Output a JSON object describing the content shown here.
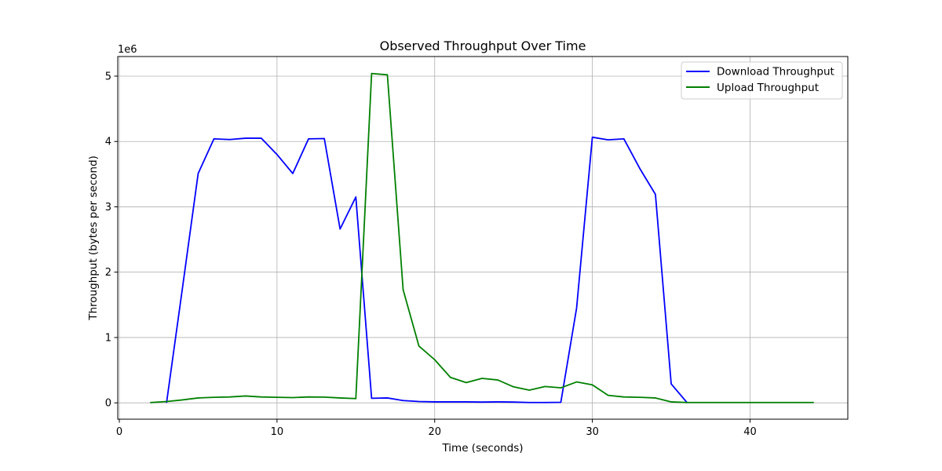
{
  "chart_data": {
    "type": "line",
    "title": "Observed Throughput Over Time",
    "xlabel": "Time (seconds)",
    "ylabel": "Throughput (bytes per second)",
    "y_offset_text": "1e6",
    "y_scale_factor": 1000000,
    "xlim": [
      -0.1,
      46.2
    ],
    "ylim": [
      -250000,
      5300000
    ],
    "xticks": [
      0,
      10,
      20,
      30,
      40
    ],
    "yticks": [
      0,
      1000000,
      2000000,
      3000000,
      4000000,
      5000000
    ],
    "xtick_labels": [
      "0",
      "10",
      "20",
      "30",
      "40"
    ],
    "ytick_labels": [
      "0",
      "1",
      "2",
      "3",
      "4",
      "5"
    ],
    "grid": true,
    "legend_position": "top-right",
    "series": [
      {
        "name": "Download Throughput",
        "color": "#0000ff",
        "x": [
          3,
          4,
          5,
          6,
          7,
          8,
          9,
          10,
          11,
          12,
          13,
          14,
          15,
          16,
          17,
          18,
          19,
          20,
          21,
          22,
          23,
          24,
          25,
          26,
          27,
          28,
          29,
          30,
          31,
          32,
          33,
          34,
          35,
          36
        ],
        "y": [
          10000,
          1750000,
          3510000,
          4040000,
          4030000,
          4050000,
          4050000,
          3800000,
          3510000,
          4040000,
          4045000,
          2660000,
          3150000,
          70000,
          75000,
          35000,
          20000,
          15000,
          15000,
          15000,
          12000,
          15000,
          12000,
          5000,
          5000,
          8000,
          1450000,
          4065000,
          4025000,
          4040000,
          3590000,
          3190000,
          290000,
          5000
        ]
      },
      {
        "name": "Upload Throughput",
        "color": "#008000",
        "x": [
          2,
          3,
          4,
          5,
          6,
          7,
          8,
          9,
          10,
          11,
          12,
          13,
          14,
          15,
          16,
          17,
          18,
          19,
          20,
          21,
          22,
          23,
          24,
          25,
          26,
          27,
          28,
          29,
          30,
          31,
          32,
          33,
          34,
          35,
          36,
          37,
          38,
          39,
          40,
          41,
          42,
          43,
          44
        ],
        "y": [
          5000,
          20000,
          45000,
          75000,
          85000,
          90000,
          105000,
          90000,
          85000,
          80000,
          90000,
          88000,
          75000,
          65000,
          5040000,
          5020000,
          1730000,
          870000,
          660000,
          390000,
          310000,
          375000,
          350000,
          245000,
          195000,
          250000,
          230000,
          320000,
          275000,
          115000,
          90000,
          85000,
          75000,
          15000,
          5000,
          5000,
          5000,
          5000,
          5000,
          5000,
          5000,
          5000,
          5000
        ]
      }
    ]
  }
}
